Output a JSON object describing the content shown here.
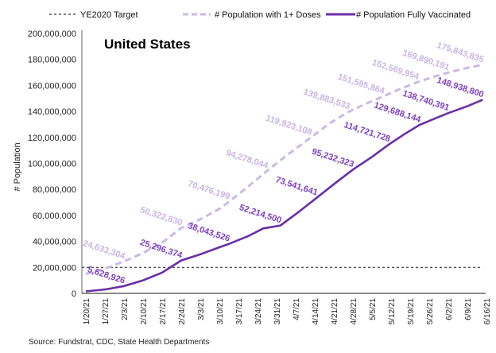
{
  "chart_data": {
    "type": "line",
    "title": "United States",
    "xlabel": "",
    "ylabel": "# Population",
    "ylim": [
      0,
      200000000
    ],
    "yticks": [
      0,
      20000000,
      40000000,
      60000000,
      80000000,
      100000000,
      120000000,
      140000000,
      160000000,
      180000000,
      200000000
    ],
    "ytick_labels": [
      "0",
      "20,000,000",
      "40,000,000",
      "60,000,000",
      "80,000,000",
      "100,000,000",
      "120,000,000",
      "140,000,000",
      "160,000,000",
      "180,000,000",
      "200,000,000"
    ],
    "x_categories": [
      "1/20/21",
      "1/27/21",
      "2/3/21",
      "2/10/21",
      "2/17/21",
      "2/24/21",
      "3/3/21",
      "3/10/21",
      "3/17/21",
      "3/24/21",
      "3/31/21",
      "4/7/21",
      "4/14/21",
      "4/21/21",
      "4/28/21",
      "5/5/21",
      "5/12/21",
      "5/19/21",
      "5/26/21",
      "6/2/21",
      "6/9/21",
      "6/16/21"
    ],
    "x_unit": "weeks since 1/20/21",
    "grid": false,
    "legend": "top",
    "target_line": {
      "name": "YE2020 Target",
      "value": 20000000,
      "color": "#333333"
    },
    "series": [
      {
        "name": "# Population with 1+ Doses",
        "color": "#cdb8e6",
        "style": "dashed",
        "points": [
          [
            0,
            15000000
          ],
          [
            1,
            19000000
          ],
          [
            2,
            24633304
          ],
          [
            3,
            31000000
          ],
          [
            4,
            39000000
          ],
          [
            5,
            50322830
          ],
          [
            6,
            57000000
          ],
          [
            7,
            65000000
          ],
          [
            7.5,
            70476199
          ],
          [
            8.5,
            82000000
          ],
          [
            9.5,
            94278044
          ],
          [
            10.6,
            107000000
          ],
          [
            11.8,
            119923108
          ],
          [
            12.8,
            131000000
          ],
          [
            13.8,
            139883533
          ],
          [
            14.7,
            146000000
          ],
          [
            15.6,
            151595864
          ],
          [
            16.5,
            157500000
          ],
          [
            17.4,
            162569954
          ],
          [
            18.2,
            166500000
          ],
          [
            19,
            169890191
          ],
          [
            20,
            173500000
          ],
          [
            20.8,
            175843835
          ]
        ],
        "labels": [
          "24,633,304",
          "50,322,830",
          "70,476,199",
          "94,278,044",
          "119,923,108",
          "139,883,533",
          "151,595,864",
          "162,569,954",
          "169,890,191",
          "175,843,835"
        ],
        "label_points": [
          2,
          5,
          7.5,
          9.5,
          11.8,
          13.8,
          15.6,
          17.4,
          19,
          20.8
        ]
      },
      {
        "name": "# Population Fully Vaccinated",
        "color": "#6a2fa8",
        "style": "solid",
        "points": [
          [
            0,
            1500000
          ],
          [
            1,
            3000000
          ],
          [
            2,
            5628926
          ],
          [
            3,
            10000000
          ],
          [
            4,
            16000000
          ],
          [
            5,
            25296374
          ],
          [
            6,
            30000000
          ],
          [
            7,
            35500000
          ],
          [
            7.5,
            38043526
          ],
          [
            8.5,
            44000000
          ],
          [
            9.3,
            50000000
          ],
          [
            10.2,
            52214500
          ],
          [
            11.1,
            62000000
          ],
          [
            12.1,
            73541641
          ],
          [
            13,
            84000000
          ],
          [
            14,
            95232323
          ],
          [
            15,
            105000000
          ],
          [
            15.9,
            114721728
          ],
          [
            16.7,
            122500000
          ],
          [
            17.5,
            129688144
          ],
          [
            18.3,
            134500000
          ],
          [
            19,
            138740391
          ],
          [
            20,
            144000000
          ],
          [
            20.8,
            148938800
          ]
        ],
        "labels": [
          "5,628,926",
          "25,296,374",
          "38,043,526",
          "52,214,500",
          "73,541,641",
          "95,232,323",
          "114,721,728",
          "129,688,144",
          "138,740,391",
          "148,938,800"
        ],
        "label_points": [
          2,
          5,
          7.5,
          10.2,
          12.1,
          14,
          15.9,
          17.5,
          19,
          20.8
        ]
      }
    ],
    "source": "Source: Fundstrat, CDC, State Health Departments"
  }
}
